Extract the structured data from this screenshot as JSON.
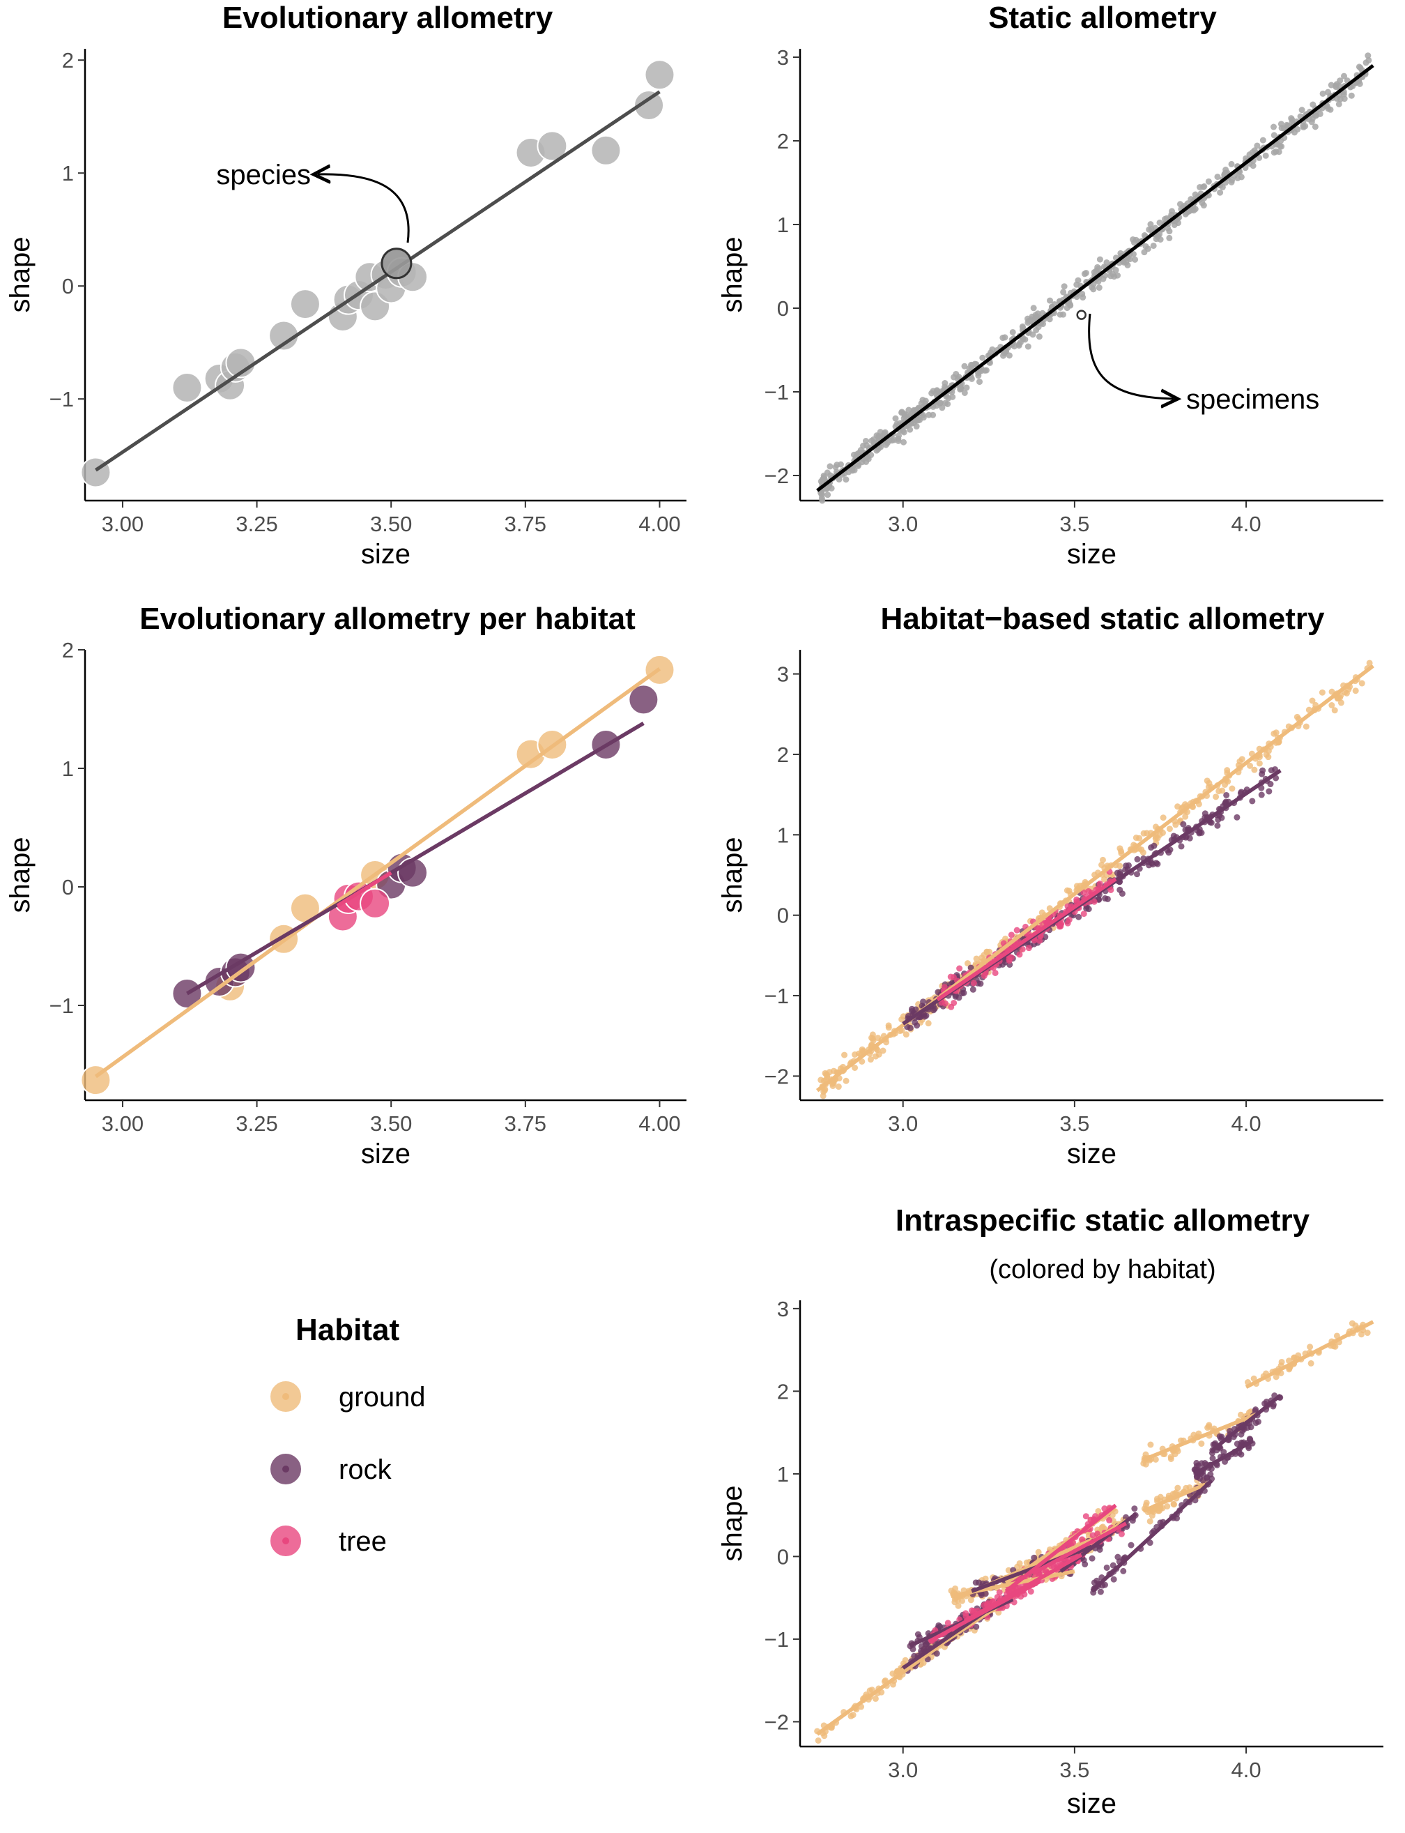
{
  "colors": {
    "ground": "#efbb7b",
    "rock": "#6b3a64",
    "tree": "#e8477f",
    "species_point": "#b4b4b4",
    "specimen_point": "#a6a6a6",
    "line_evolutionary": "#4d4d4d",
    "line_static": "#000000",
    "tick_text": "#4d4d4d"
  },
  "legend": {
    "title": "Habitat",
    "items": [
      {
        "label": "ground",
        "color": "#efbb7b"
      },
      {
        "label": "rock",
        "color": "#6b3a64"
      },
      {
        "label": "tree",
        "color": "#e8477f"
      }
    ]
  },
  "chart_data": [
    {
      "id": "evolutionary",
      "type": "scatter",
      "title": "Evolutionary allometry",
      "xlabel": "size",
      "ylabel": "shape",
      "xlim": [
        2.93,
        4.05
      ],
      "ylim": [
        -1.9,
        2.1
      ],
      "xticks": [
        3.0,
        3.25,
        3.5,
        3.75,
        4.0
      ],
      "xtick_labels": [
        "3.00",
        "3.25",
        "3.50",
        "3.75",
        "4.00"
      ],
      "yticks": [
        -1,
        0,
        1,
        2
      ],
      "ytick_labels": [
        "−1",
        "0",
        "1",
        "2"
      ],
      "annotation": "species",
      "series": [
        {
          "points": [
            [
              2.95,
              -1.65
            ],
            [
              3.12,
              -0.9
            ],
            [
              3.18,
              -0.82
            ],
            [
              3.2,
              -0.88
            ],
            [
              3.21,
              -0.72
            ],
            [
              3.22,
              -0.68
            ],
            [
              3.3,
              -0.44
            ],
            [
              3.34,
              -0.16
            ],
            [
              3.41,
              -0.27
            ],
            [
              3.42,
              -0.12
            ],
            [
              3.44,
              -0.08
            ],
            [
              3.46,
              0.08
            ],
            [
              3.47,
              -0.18
            ],
            [
              3.49,
              0.1
            ],
            [
              3.5,
              -0.02
            ],
            [
              3.51,
              0.2
            ],
            [
              3.52,
              0.12
            ],
            [
              3.54,
              0.08
            ],
            [
              3.76,
              1.18
            ],
            [
              3.8,
              1.24
            ],
            [
              3.9,
              1.2
            ],
            [
              3.98,
              1.6
            ],
            [
              4.0,
              1.87
            ]
          ],
          "fit": [
            [
              2.95,
              -1.63
            ],
            [
              4.0,
              1.72
            ]
          ]
        }
      ]
    },
    {
      "id": "static",
      "type": "scatter",
      "title": "Static allometry",
      "xlabel": "size",
      "ylabel": "shape",
      "xlim": [
        2.7,
        4.4
      ],
      "ylim": [
        -2.3,
        3.1
      ],
      "xticks": [
        3.0,
        3.5,
        4.0
      ],
      "xtick_labels": [
        "3.0",
        "3.5",
        "4.0"
      ],
      "yticks": [
        -2,
        -1,
        0,
        1,
        2,
        3
      ],
      "ytick_labels": [
        "−2",
        "−1",
        "0",
        "1",
        "2",
        "3"
      ],
      "annotation": "specimens",
      "series": [
        {
          "fit": [
            [
              2.75,
              -2.18
            ],
            [
              4.37,
              2.9
            ]
          ],
          "range": [
            2.75,
            4.37
          ],
          "slope": 3.14,
          "intercept": -10.82
        }
      ]
    },
    {
      "id": "evolutionary_habitat",
      "type": "scatter",
      "title": "Evolutionary allometry per habitat",
      "xlabel": "size",
      "ylabel": "shape",
      "xlim": [
        2.93,
        4.05
      ],
      "ylim": [
        -1.8,
        2.0
      ],
      "xticks": [
        3.0,
        3.25,
        3.5,
        3.75,
        4.0
      ],
      "xtick_labels": [
        "3.00",
        "3.25",
        "3.50",
        "3.75",
        "4.00"
      ],
      "yticks": [
        -1,
        0,
        1,
        2
      ],
      "ytick_labels": [
        "−1",
        "0",
        "1",
        "2"
      ],
      "series": [
        {
          "name": "ground",
          "points": [
            [
              2.95,
              -1.63
            ],
            [
              3.2,
              -0.84
            ],
            [
              3.3,
              -0.44
            ],
            [
              3.34,
              -0.18
            ],
            [
              3.47,
              0.1
            ],
            [
              3.76,
              1.12
            ],
            [
              3.8,
              1.2
            ],
            [
              4.0,
              1.83
            ]
          ],
          "fit": [
            [
              2.95,
              -1.6
            ],
            [
              4.0,
              1.84
            ]
          ]
        },
        {
          "name": "rock",
          "points": [
            [
              3.12,
              -0.9
            ],
            [
              3.18,
              -0.8
            ],
            [
              3.21,
              -0.72
            ],
            [
              3.22,
              -0.68
            ],
            [
              3.5,
              0.02
            ],
            [
              3.52,
              0.16
            ],
            [
              3.54,
              0.12
            ],
            [
              3.9,
              1.2
            ],
            [
              3.97,
              1.58
            ]
          ],
          "fit": [
            [
              3.12,
              -0.9
            ],
            [
              3.97,
              1.38
            ]
          ]
        },
        {
          "name": "tree",
          "points": [
            [
              3.41,
              -0.25
            ],
            [
              3.42,
              -0.1
            ],
            [
              3.44,
              -0.08
            ],
            [
              3.47,
              -0.14
            ]
          ],
          "fit": [
            [
              3.4,
              -0.16
            ],
            [
              3.5,
              0.12
            ]
          ]
        }
      ]
    },
    {
      "id": "habitat_static",
      "type": "scatter",
      "title": "Habitat−based static allometry",
      "xlabel": "size",
      "ylabel": "shape",
      "xlim": [
        2.7,
        4.4
      ],
      "ylim": [
        -2.3,
        3.3
      ],
      "xticks": [
        3.0,
        3.5,
        4.0
      ],
      "xtick_labels": [
        "3.0",
        "3.5",
        "4.0"
      ],
      "yticks": [
        -2,
        -1,
        0,
        1,
        2,
        3
      ],
      "ytick_labels": [
        "−2",
        "−1",
        "0",
        "1",
        "2",
        "3"
      ],
      "series": [
        {
          "name": "ground",
          "fit": [
            [
              2.75,
              -2.18
            ],
            [
              4.37,
              3.1
            ]
          ],
          "range": [
            2.75,
            4.37
          ]
        },
        {
          "name": "rock",
          "fit": [
            [
              3.0,
              -1.35
            ],
            [
              4.1,
              1.8
            ]
          ],
          "range": [
            3.0,
            4.1
          ]
        },
        {
          "name": "tree",
          "fit": [
            [
              3.1,
              -1.05
            ],
            [
              3.62,
              0.45
            ]
          ],
          "range": [
            3.1,
            3.62
          ]
        }
      ]
    },
    {
      "id": "intraspecific",
      "type": "scatter",
      "title": "Intraspecific static allometry",
      "subtitle": "(colored by habitat)",
      "xlabel": "size",
      "ylabel": "shape",
      "xlim": [
        2.7,
        4.4
      ],
      "ylim": [
        -2.3,
        3.1
      ],
      "xticks": [
        3.0,
        3.5,
        4.0
      ],
      "xtick_labels": [
        "3.0",
        "3.5",
        "4.0"
      ],
      "yticks": [
        -2,
        -1,
        0,
        1,
        2,
        3
      ],
      "ytick_labels": [
        "−2",
        "−1",
        "0",
        "1",
        "2",
        "3"
      ],
      "series": [
        {
          "name": "ground",
          "fits": [
            [
              [
                2.75,
                -2.15
              ],
              [
                3.1,
                -1.1
              ]
            ],
            [
              [
                2.98,
                -1.42
              ],
              [
                3.35,
                -0.4
              ]
            ],
            [
              [
                3.15,
                -0.52
              ],
              [
                3.55,
                0.2
              ]
            ],
            [
              [
                3.14,
                -0.48
              ],
              [
                3.5,
                -0.18
              ]
            ],
            [
              [
                3.3,
                -0.32
              ],
              [
                3.62,
                0.58
              ]
            ],
            [
              [
                3.5,
                0.04
              ],
              [
                3.65,
                0.44
              ]
            ],
            [
              [
                3.7,
                1.17
              ],
              [
                4.03,
                1.72
              ]
            ],
            [
              [
                3.7,
                0.55
              ],
              [
                3.88,
                0.87
              ]
            ],
            [
              [
                4.0,
                2.05
              ],
              [
                4.37,
                2.84
              ]
            ]
          ]
        },
        {
          "name": "rock",
          "fits": [
            [
              [
                3.0,
                -1.35
              ],
              [
                3.25,
                -0.64
              ]
            ],
            [
              [
                3.02,
                -1.08
              ],
              [
                3.32,
                -0.52
              ]
            ],
            [
              [
                3.2,
                -0.42
              ],
              [
                3.55,
                0.12
              ]
            ],
            [
              [
                3.46,
                -0.18
              ],
              [
                3.68,
                0.52
              ]
            ],
            [
              [
                3.55,
                -0.42
              ],
              [
                3.9,
                0.92
              ]
            ],
            [
              [
                3.9,
                1.28
              ],
              [
                4.1,
                1.95
              ]
            ],
            [
              [
                3.85,
                1.0
              ],
              [
                4.02,
                1.4
              ]
            ]
          ]
        },
        {
          "name": "tree",
          "fits": [
            [
              [
                3.08,
                -1.02
              ],
              [
                3.4,
                -0.3
              ]
            ],
            [
              [
                3.18,
                -0.78
              ],
              [
                3.52,
                0.02
              ]
            ],
            [
              [
                3.3,
                -0.42
              ],
              [
                3.62,
                0.62
              ]
            ],
            [
              [
                3.38,
                -0.2
              ],
              [
                3.65,
                0.4
              ]
            ]
          ]
        }
      ]
    }
  ]
}
